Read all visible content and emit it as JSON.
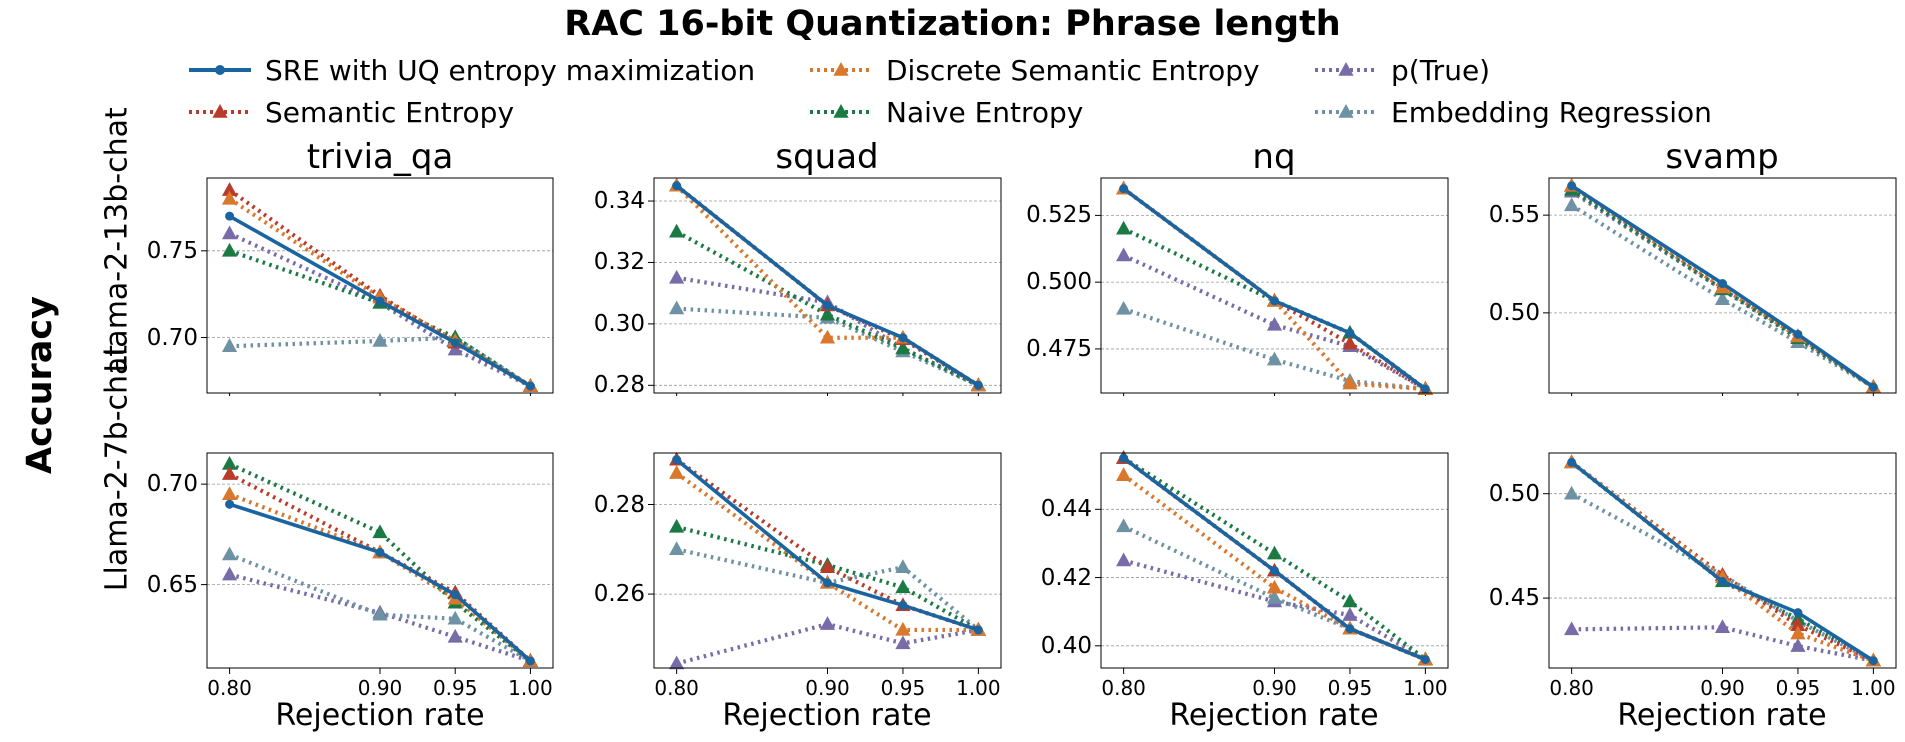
{
  "chart_data": {
    "type": "line",
    "title": "RAC 16-bit Quantization: Phrase length",
    "ylabel": "Accuracy",
    "xlabel": "Rejection rate",
    "x": [
      0.8,
      0.9,
      0.95,
      1.0
    ],
    "x_tick_labels": [
      "0.80",
      "0.90",
      "0.95",
      "1.00"
    ],
    "legend": {
      "placement": "top",
      "entries": [
        {
          "name": "SRE with UQ entropy maximization",
          "color": "#1a64a0",
          "style": "solid",
          "marker": "circle"
        },
        {
          "name": "Discrete Semantic Entropy",
          "color": "#d9782d",
          "style": "dotted",
          "marker": "triangle"
        },
        {
          "name": "p(True)",
          "color": "#776ca8",
          "style": "dotted",
          "marker": "triangle"
        },
        {
          "name": "Semantic Entropy",
          "color": "#b83c2b",
          "style": "dotted",
          "marker": "triangle"
        },
        {
          "name": "Naive Entropy",
          "color": "#1b7a43",
          "style": "dotted",
          "marker": "triangle"
        },
        {
          "name": "Embedding Regression",
          "color": "#6e92a3",
          "style": "dotted",
          "marker": "triangle"
        }
      ]
    },
    "columns": [
      "trivia_qa",
      "squad",
      "nq",
      "svamp"
    ],
    "rows": [
      "Llama-2-13b-chat",
      "Llama-2-7b-chat"
    ],
    "panels": [
      {
        "row": "Llama-2-13b-chat",
        "dataset": "trivia_qa",
        "ylim": [
          0.668,
          0.792
        ],
        "yticks": [
          0.7,
          0.75
        ],
        "ytick_labels": [
          "0.70",
          "0.75"
        ],
        "series": [
          {
            "name": "p(True)",
            "values": [
              0.76,
              0.72,
              0.693,
              0.672
            ]
          },
          {
            "name": "Embedding Regression",
            "values": [
              0.695,
              0.698,
              0.7,
              0.672
            ]
          },
          {
            "name": "Naive Entropy",
            "values": [
              0.75,
              0.72,
              0.7,
              0.672
            ]
          },
          {
            "name": "Semantic Entropy",
            "values": [
              0.785,
              0.724,
              0.697,
              0.672
            ]
          },
          {
            "name": "Discrete Semantic Entropy",
            "values": [
              0.78,
              0.723,
              0.698,
              0.672
            ]
          },
          {
            "name": "SRE with UQ entropy maximization",
            "values": [
              0.77,
              0.721,
              0.697,
              0.672
            ]
          }
        ]
      },
      {
        "row": "Llama-2-13b-chat",
        "dataset": "squad",
        "ylim": [
          0.2775,
          0.3475
        ],
        "yticks": [
          0.28,
          0.3,
          0.32,
          0.34
        ],
        "ytick_labels": [
          "0.28",
          "0.30",
          "0.32",
          "0.34"
        ],
        "series": [
          {
            "name": "p(True)",
            "values": [
              0.315,
              0.307,
              0.292,
              0.28
            ]
          },
          {
            "name": "Embedding Regression",
            "values": [
              0.305,
              0.302,
              0.291,
              0.28
            ]
          },
          {
            "name": "Naive Entropy",
            "values": [
              0.33,
              0.303,
              0.292,
              0.28
            ]
          },
          {
            "name": "Semantic Entropy",
            "values": [
              0.345,
              0.306,
              0.295,
              0.28
            ]
          },
          {
            "name": "Discrete Semantic Entropy",
            "values": [
              0.345,
              0.2955,
              0.2955,
              0.28
            ]
          },
          {
            "name": "SRE with UQ entropy maximization",
            "values": [
              0.345,
              0.306,
              0.2955,
              0.28
            ]
          }
        ]
      },
      {
        "row": "Llama-2-13b-chat",
        "dataset": "nq",
        "ylim": [
          0.4585,
          0.539
        ],
        "yticks": [
          0.475,
          0.5,
          0.525
        ],
        "ytick_labels": [
          "0.475",
          "0.500",
          "0.525"
        ],
        "series": [
          {
            "name": "p(True)",
            "values": [
              0.51,
              0.484,
              0.476,
              0.46
            ]
          },
          {
            "name": "Embedding Regression",
            "values": [
              0.49,
              0.471,
              0.463,
              0.46
            ]
          },
          {
            "name": "Naive Entropy",
            "values": [
              0.52,
              0.493,
              0.481,
              0.46
            ]
          },
          {
            "name": "Semantic Entropy",
            "values": [
              0.535,
              0.493,
              0.477,
              0.46
            ]
          },
          {
            "name": "Discrete Semantic Entropy",
            "values": [
              0.535,
              0.493,
              0.462,
              0.46
            ]
          },
          {
            "name": "SRE with UQ entropy maximization",
            "values": [
              0.535,
              0.493,
              0.481,
              0.46
            ]
          }
        ]
      },
      {
        "row": "Llama-2-13b-chat",
        "dataset": "svamp",
        "ylim": [
          0.459,
          0.569
        ],
        "yticks": [
          0.5,
          0.55
        ],
        "ytick_labels": [
          "0.50",
          "0.55"
        ],
        "series": [
          {
            "name": "p(True)",
            "values": [
              0.562,
              0.512,
              0.488,
              0.462
            ]
          },
          {
            "name": "Embedding Regression",
            "values": [
              0.555,
              0.507,
              0.485,
              0.462
            ]
          },
          {
            "name": "Naive Entropy",
            "values": [
              0.563,
              0.512,
              0.487,
              0.462
            ]
          },
          {
            "name": "Semantic Entropy",
            "values": [
              0.565,
              0.513,
              0.488,
              0.462
            ]
          },
          {
            "name": "Discrete Semantic Entropy",
            "values": [
              0.565,
              0.513,
              0.488,
              0.462
            ]
          },
          {
            "name": "SRE with UQ entropy maximization",
            "values": [
              0.565,
              0.515,
              0.489,
              0.462
            ]
          }
        ]
      },
      {
        "row": "Llama-2-7b-chat",
        "dataset": "trivia_qa",
        "ylim": [
          0.6085,
          0.7155
        ],
        "yticks": [
          0.65,
          0.7
        ],
        "ytick_labels": [
          "0.65",
          "0.70"
        ],
        "series": [
          {
            "name": "p(True)",
            "values": [
              0.655,
              0.636,
              0.624,
              0.612
            ]
          },
          {
            "name": "Embedding Regression",
            "values": [
              0.665,
              0.635,
              0.633,
              0.612
            ]
          },
          {
            "name": "Naive Entropy",
            "values": [
              0.71,
              0.676,
              0.641,
              0.612
            ]
          },
          {
            "name": "Semantic Entropy",
            "values": [
              0.705,
              0.666,
              0.646,
              0.612
            ]
          },
          {
            "name": "Discrete Semantic Entropy",
            "values": [
              0.695,
              0.666,
              0.643,
              0.612
            ]
          },
          {
            "name": "SRE with UQ entropy maximization",
            "values": [
              0.69,
              0.666,
              0.645,
              0.612
            ]
          }
        ]
      },
      {
        "row": "Llama-2-7b-chat",
        "dataset": "squad",
        "ylim": [
          0.2435,
          0.2915
        ],
        "yticks": [
          0.26,
          0.28
        ],
        "ytick_labels": [
          "0.26",
          "0.28"
        ],
        "series": [
          {
            "name": "p(True)",
            "values": [
              0.2445,
              0.2533,
              0.249,
              0.252
            ]
          },
          {
            "name": "Embedding Regression",
            "values": [
              0.27,
              0.2625,
              0.266,
              0.252
            ]
          },
          {
            "name": "Naive Entropy",
            "values": [
              0.275,
              0.2665,
              0.2615,
              0.252
            ]
          },
          {
            "name": "Semantic Entropy",
            "values": [
              0.29,
              0.266,
              0.2575,
              0.252
            ]
          },
          {
            "name": "Discrete Semantic Entropy",
            "values": [
              0.287,
              0.2625,
              0.252,
              0.252
            ]
          },
          {
            "name": "SRE with UQ entropy maximization",
            "values": [
              0.29,
              0.2625,
              0.2575,
              0.252
            ]
          }
        ]
      },
      {
        "row": "Llama-2-7b-chat",
        "dataset": "nq",
        "ylim": [
          0.3935,
          0.4565
        ],
        "yticks": [
          0.4,
          0.42,
          0.44
        ],
        "ytick_labels": [
          "0.40",
          "0.42",
          "0.44"
        ],
        "series": [
          {
            "name": "p(True)",
            "values": [
              0.425,
              0.413,
              0.409,
              0.396
            ]
          },
          {
            "name": "Embedding Regression",
            "values": [
              0.435,
              0.414,
              0.405,
              0.396
            ]
          },
          {
            "name": "Naive Entropy",
            "values": [
              0.455,
              0.427,
              0.413,
              0.396
            ]
          },
          {
            "name": "Semantic Entropy",
            "values": [
              0.455,
              0.422,
              0.405,
              0.396
            ]
          },
          {
            "name": "Discrete Semantic Entropy",
            "values": [
              0.45,
              0.417,
              0.405,
              0.396
            ]
          },
          {
            "name": "SRE with UQ entropy maximization",
            "values": [
              0.455,
              0.422,
              0.405,
              0.396
            ]
          }
        ]
      },
      {
        "row": "Llama-2-7b-chat",
        "dataset": "svamp",
        "ylim": [
          0.4165,
          0.5195
        ],
        "yticks": [
          0.45,
          0.5
        ],
        "ytick_labels": [
          "0.45",
          "0.50"
        ],
        "series": [
          {
            "name": "p(True)",
            "values": [
              0.435,
              0.436,
              0.427,
              0.42
            ]
          },
          {
            "name": "Embedding Regression",
            "values": [
              0.5,
              0.461,
              0.439,
              0.42
            ]
          },
          {
            "name": "Naive Entropy",
            "values": [
              0.515,
              0.458,
              0.44,
              0.42
            ]
          },
          {
            "name": "Semantic Entropy",
            "values": [
              0.515,
              0.461,
              0.437,
              0.42
            ]
          },
          {
            "name": "Discrete Semantic Entropy",
            "values": [
              0.515,
              0.46,
              0.433,
              0.42
            ]
          },
          {
            "name": "SRE with UQ entropy maximization",
            "values": [
              0.515,
              0.458,
              0.443,
              0.42
            ]
          }
        ]
      }
    ]
  }
}
